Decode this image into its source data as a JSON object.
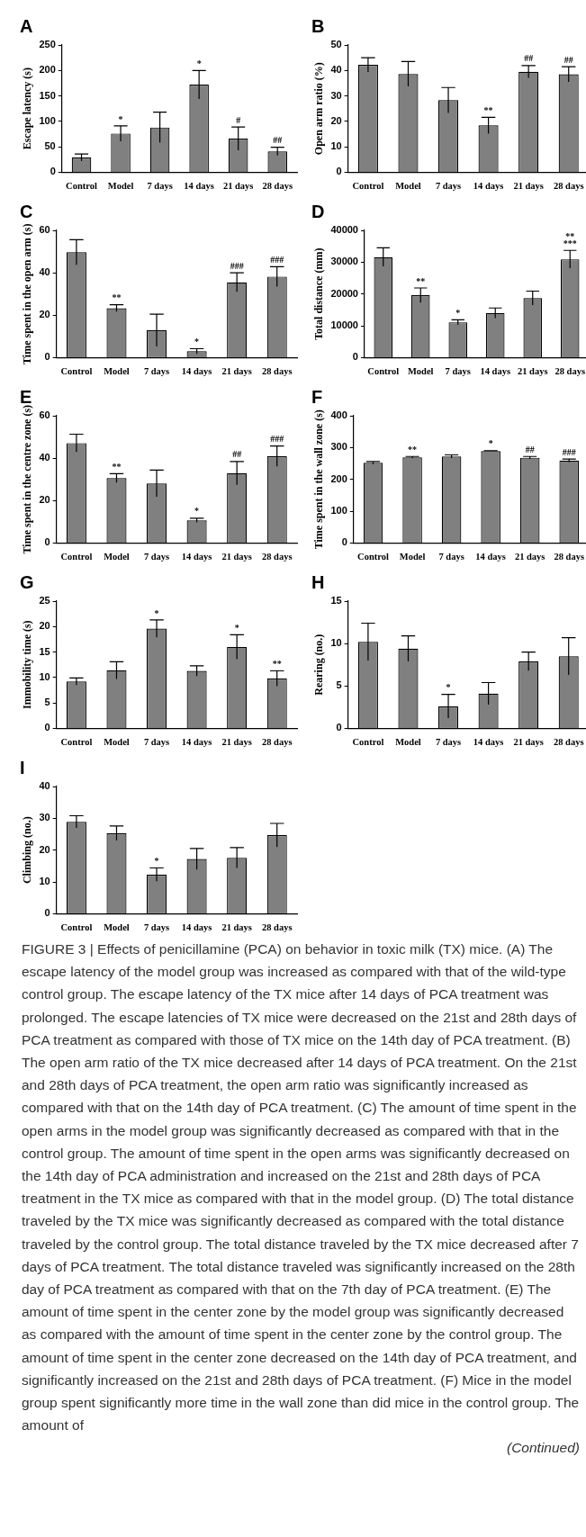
{
  "chart_data": [
    {
      "type": "bar",
      "title": "A",
      "ylabel": "Escape latency (s)",
      "categories": [
        "Control",
        "Model",
        "7 days",
        "14 days",
        "21 days",
        "28 days"
      ],
      "values": [
        29,
        76,
        88,
        172,
        66,
        41
      ],
      "errors": [
        7,
        15,
        30,
        28,
        23,
        8
      ],
      "color": "#808080",
      "ylim": [
        0,
        250
      ],
      "yticks": [
        0,
        50,
        100,
        150,
        200,
        250
      ],
      "annotations": [
        {
          "text": "*",
          "x": "Model",
          "y": 91
        },
        {
          "text": "*",
          "x": "14 days",
          "y": 200
        },
        {
          "text": "#",
          "x": "21 days",
          "y": 89
        },
        {
          "text": "##",
          "x": "28 days",
          "y": 49
        }
      ]
    },
    {
      "type": "bar",
      "title": "B",
      "ylabel": "Open arm ratio (%)",
      "categories": [
        "Control",
        "Model",
        "7 days",
        "14 days",
        "21 days",
        "28 days"
      ],
      "values": [
        42.2,
        38.6,
        28.3,
        18.4,
        39.5,
        38.5
      ],
      "errors": [
        2.8,
        4.9,
        5,
        3.2,
        2.4,
        3
      ],
      "color": "#808080",
      "ylim": [
        0,
        50
      ],
      "yticks": [
        0,
        10,
        20,
        30,
        40,
        50
      ],
      "annotations": [
        {
          "text": "**",
          "x": "14 days",
          "y": 21.6
        },
        {
          "text": "##",
          "x": "21 days",
          "y": 41.9
        },
        {
          "text": "##",
          "x": "28 days",
          "y": 41.5
        }
      ]
    },
    {
      "type": "bar",
      "title": "C",
      "ylabel": "Time spent in the open arm (s)",
      "categories": [
        "Control",
        "Model",
        "7 days",
        "14 days",
        "21 days",
        "28 days"
      ],
      "values": [
        49.7,
        23.3,
        12.9,
        3.0,
        35.5,
        38.2
      ],
      "errors": [
        5.9,
        1.6,
        7.6,
        1.2,
        4.5,
        4.7
      ],
      "color": "#808080",
      "ylim": [
        0,
        60
      ],
      "yticks": [
        0,
        20,
        40,
        60
      ],
      "annotations": [
        {
          "text": "**",
          "x": "Model",
          "y": 24.9
        },
        {
          "text": "*",
          "x": "14 days",
          "y": 4.2
        },
        {
          "text": "###",
          "x": "21 days",
          "y": 40
        },
        {
          "text": "###",
          "x": "28 days",
          "y": 42.9
        }
      ]
    },
    {
      "type": "bar",
      "title": "D",
      "ylabel": "Total distance (mm)",
      "categories": [
        "Control",
        "Model",
        "7 days",
        "14 days",
        "21 days",
        "28 days"
      ],
      "values": [
        31600,
        19600,
        11100,
        14000,
        18700,
        30900
      ],
      "errors": [
        2900,
        2300,
        800,
        1600,
        2200,
        2800
      ],
      "color": "#808080",
      "ylim": [
        0,
        40000
      ],
      "yticks": [
        0,
        10000,
        20000,
        30000,
        40000
      ],
      "annotations": [
        {
          "text": "**",
          "x": "Model",
          "y": 21900
        },
        {
          "text": "*",
          "x": "7 days",
          "y": 11900
        },
        {
          "text": "**\n***",
          "x": "28 days",
          "y": 33700
        }
      ]
    },
    {
      "type": "bar",
      "title": "E",
      "ylabel": "Time spent in the centre zone (s)",
      "categories": [
        "Control",
        "Model",
        "7 days",
        "14 days",
        "21 days",
        "28 days"
      ],
      "values": [
        47.1,
        30.6,
        28.1,
        10.7,
        32.9,
        40.9
      ],
      "errors": [
        4.2,
        2.1,
        6.3,
        1.0,
        5.5,
        4.8
      ],
      "color": "#808080",
      "ylim": [
        0,
        60
      ],
      "yticks": [
        0,
        20,
        40,
        60
      ],
      "annotations": [
        {
          "text": "**",
          "x": "Model",
          "y": 32.7
        },
        {
          "text": "*",
          "x": "14 days",
          "y": 11.7
        },
        {
          "text": "##",
          "x": "21 days",
          "y": 38.4
        },
        {
          "text": "###",
          "x": "28 days",
          "y": 45.7
        }
      ]
    },
    {
      "type": "bar",
      "title": "F",
      "ylabel": "Time spent in the wall zone (s)",
      "categories": [
        "Control",
        "Model",
        "7 days",
        "14 days",
        "21 days",
        "28 days"
      ],
      "values": [
        252,
        269,
        272,
        289,
        268,
        259
      ],
      "errors": [
        4,
        3,
        5,
        1,
        4,
        5
      ],
      "color": "#808080",
      "ylim": [
        0,
        400
      ],
      "yticks": [
        0,
        100,
        200,
        300,
        400
      ],
      "annotations": [
        {
          "text": "**",
          "x": "Model",
          "y": 272
        },
        {
          "text": "*",
          "x": "14 days",
          "y": 290
        },
        {
          "text": "##",
          "x": "21 days",
          "y": 272
        },
        {
          "text": "###",
          "x": "28 days",
          "y": 264
        }
      ]
    },
    {
      "type": "bar",
      "title": "G",
      "ylabel": "Immobility time (s)",
      "categories": [
        "Control",
        "Model",
        "7 days",
        "14 days",
        "21 days",
        "28 days"
      ],
      "values": [
        9.2,
        11.4,
        19.6,
        11.3,
        16.0,
        9.8
      ],
      "errors": [
        0.7,
        1.7,
        1.7,
        1.0,
        2.4,
        1.5
      ],
      "color": "#808080",
      "ylim": [
        0,
        25
      ],
      "yticks": [
        0,
        5,
        10,
        15,
        20,
        25
      ],
      "annotations": [
        {
          "text": "*",
          "x": "7 days",
          "y": 21.3
        },
        {
          "text": "*",
          "x": "21 days",
          "y": 18.4
        },
        {
          "text": "**",
          "x": "28 days",
          "y": 11.3
        }
      ]
    },
    {
      "type": "bar",
      "title": "H",
      "ylabel": "Rearing (no.)",
      "categories": [
        "Control",
        "Model",
        "7 days",
        "14 days",
        "21 days",
        "28 days"
      ],
      "values": [
        10.2,
        9.4,
        2.6,
        4.1,
        7.9,
        8.5
      ],
      "errors": [
        2.2,
        1.5,
        1.4,
        1.3,
        1.1,
        2.2
      ],
      "color": "#808080",
      "ylim": [
        0,
        15
      ],
      "yticks": [
        0,
        5,
        10,
        15
      ],
      "annotations": [
        {
          "text": "*",
          "x": "7 days",
          "y": 4.0
        }
      ]
    },
    {
      "type": "bar",
      "title": "I",
      "ylabel": "Climbing (no.)",
      "categories": [
        "Control",
        "Model",
        "7 days",
        "14 days",
        "21 days",
        "28 days"
      ],
      "values": [
        28.9,
        25.3,
        12.3,
        17.2,
        17.6,
        24.7
      ],
      "errors": [
        1.9,
        2.3,
        2.1,
        3.3,
        3.2,
        3.7
      ],
      "color": "#808080",
      "ylim": [
        0,
        40
      ],
      "yticks": [
        0,
        10,
        20,
        30,
        40
      ],
      "annotations": [
        {
          "text": "*",
          "x": "7 days",
          "y": 14.4
        }
      ]
    },
    {
      "type": "other",
      "annotations": [
        "FIGURE 3 | Effects of penicillamine (PCA) on behavior in toxic milk (TX) mice. (A) The escape latency of the model group was increased as compared with that of the wild-type control group. The escape latency of the TX mice after 14 days of PCA treatment was prolonged. The escape latencies of TX mice were decreased on the 21st and 28th days of PCA treatment as compared with those of TX mice on the 14th day of PCA treatment. (B) The open arm ratio of the TX mice decreased after 14 days of PCA treatment. On the 21st and 28th days of PCA treatment, the open arm ratio was significantly increased as compared with that on the 14th day of PCA treatment. (C) The amount of time spent in the open arms in the model group was significantly decreased as compared with that in the control group. The amount of time spent in the open arms was significantly decreased on the 14th day of PCA administration and increased on the 21st and 28th days of PCA treatment in the TX mice as compared with that in the model group. (D) The total distance traveled by the TX mice was significantly decreased as compared with the total distance traveled by the control group. The total distance traveled by the TX mice decreased after 7 days of PCA treatment. The total distance traveled was significantly increased on the 28th day of PCA treatment as compared with that on the 7th day of PCA treatment. (E) The amount of time spent in the center zone by the model group was significantly decreased as compared with the amount of time spent in the center zone by the control group. The amount of time spent in the center zone decreased on the 14th day of PCA treatment, and significantly increased on the 21st and 28th days of PCA treatment. (F) Mice in the model group spent significantly more time in the wall zone than did mice in the control group. The amount of",
        "(Continued)"
      ]
    }
  ]
}
